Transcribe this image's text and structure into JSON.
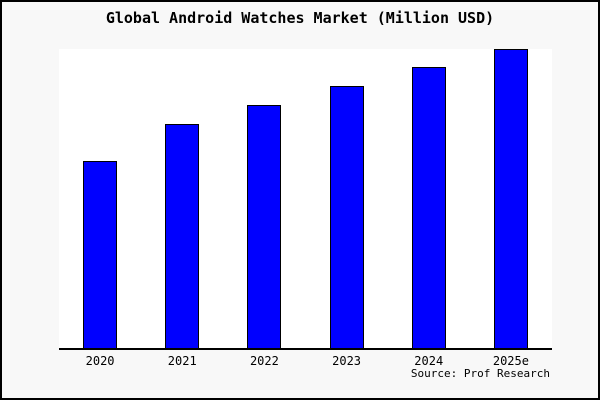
{
  "chart": {
    "colors": {
      "figure_background": "#f8f8f8",
      "figure_border": "#000000",
      "plot_background": "#ffffff",
      "bar_fill": "#0000ff",
      "bar_border": "#000000",
      "axis_line": "#000000",
      "text": "#000000"
    }
  },
  "chart_data": {
    "type": "bar",
    "title": "Global Android Watches Market (Million USD)",
    "xlabel": "",
    "ylabel": "",
    "categories": [
      "2020",
      "2021",
      "2022",
      "2023",
      "2024",
      "2025e"
    ],
    "values": [
      188,
      225,
      244,
      263,
      282,
      300
    ],
    "ylim": [
      0,
      300
    ],
    "units": "relative units; no y-axis tick labels shown in figure, values estimated from bar heights",
    "y_axis_visible": false,
    "grid": false,
    "legend": "none",
    "source": "Source: Prof Research"
  }
}
